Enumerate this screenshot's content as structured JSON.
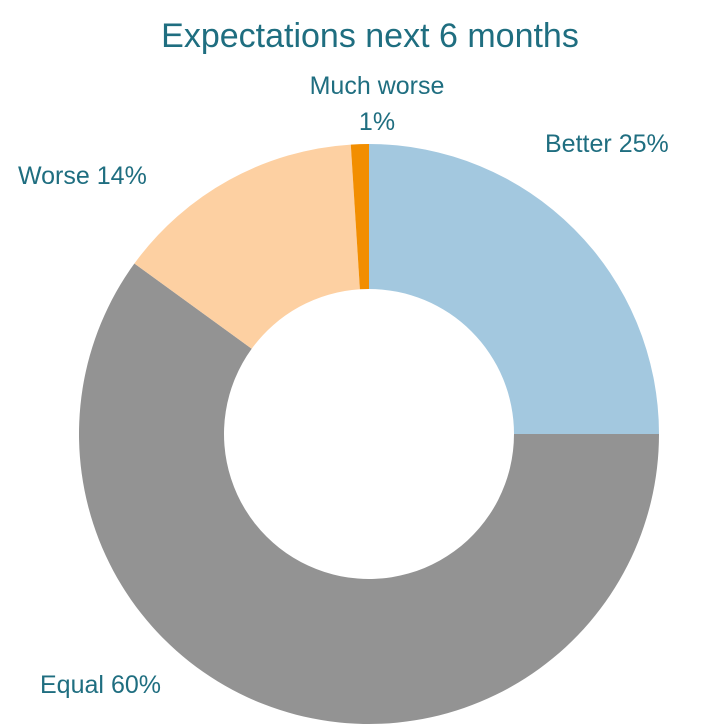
{
  "chart_data": {
    "type": "donut",
    "title": "Expectations next 6 months",
    "categories": [
      "Better",
      "Equal",
      "Worse",
      "Much worse"
    ],
    "values": [
      25,
      60,
      14,
      1
    ],
    "value_labels": [
      "25%",
      "60%",
      "14%",
      "1%"
    ],
    "colors": [
      "#a3c8df",
      "#939393",
      "#fdd0a2",
      "#f28e00"
    ]
  }
}
